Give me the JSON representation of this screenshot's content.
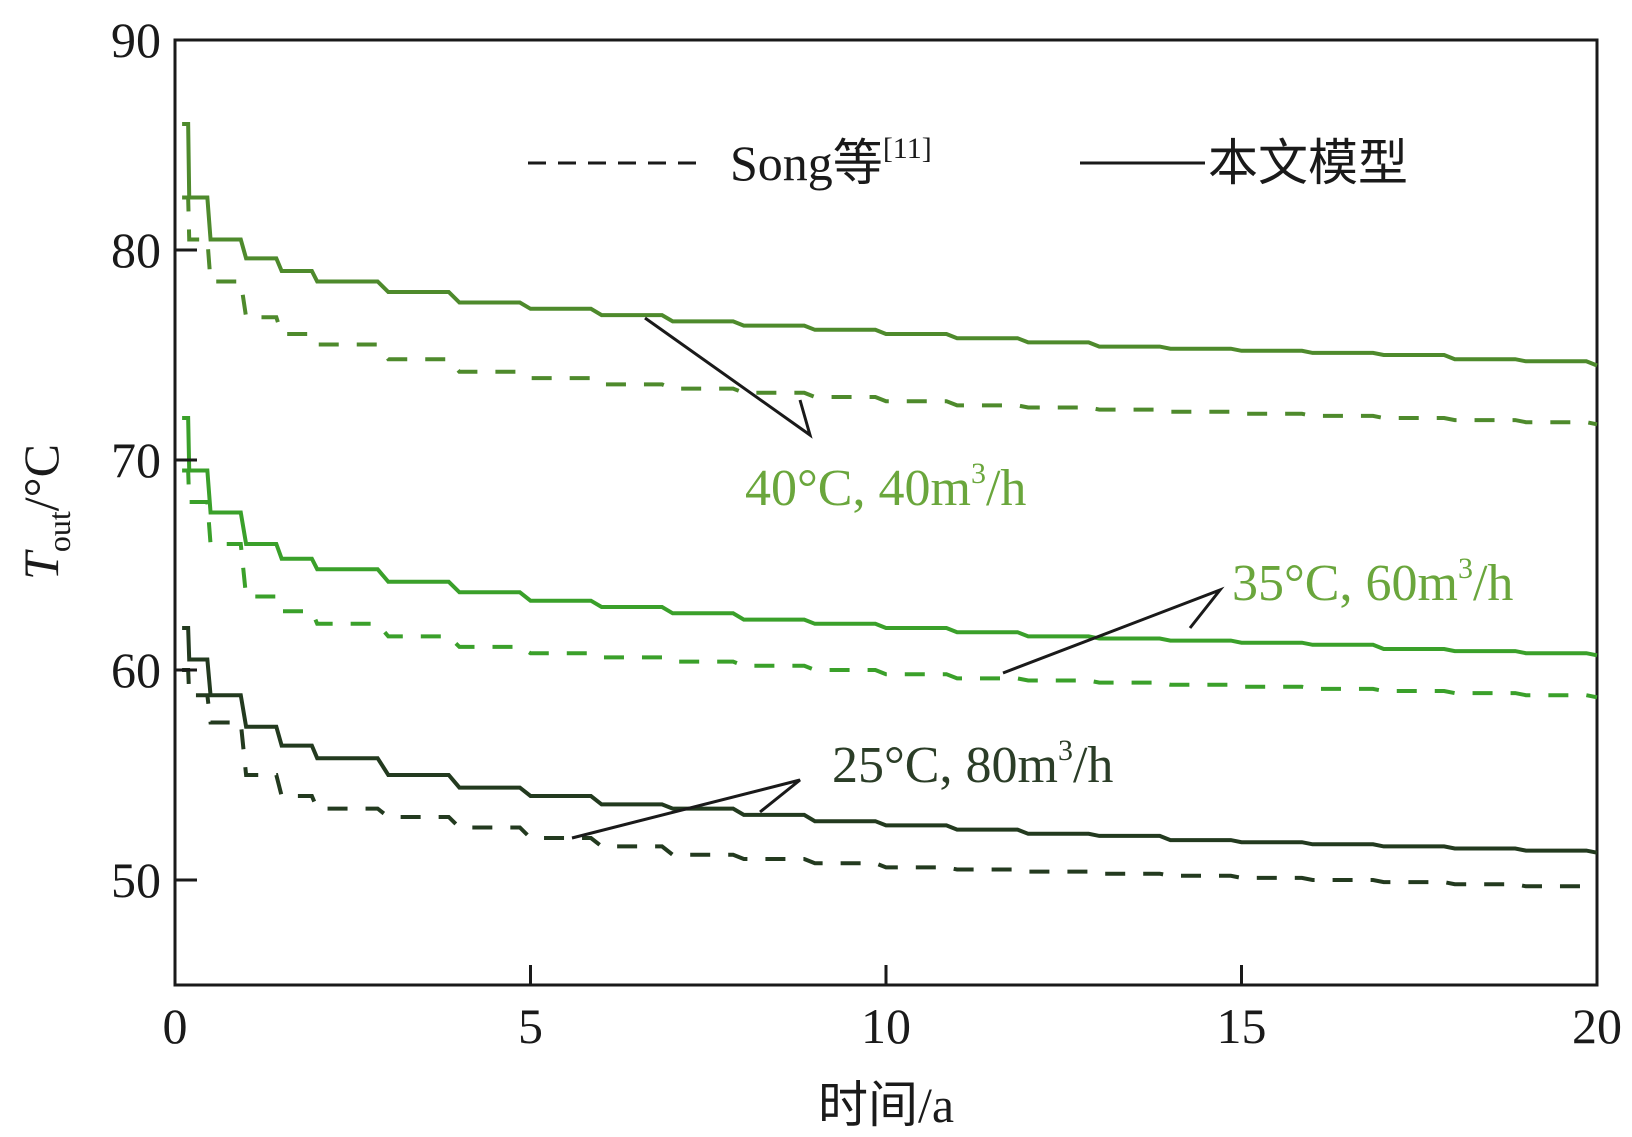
{
  "chart_data": {
    "type": "line",
    "title": "",
    "xlabel": "时间/a",
    "ylabel": {
      "main": "T",
      "sub": "out",
      "rest": "/°C"
    },
    "xlim": [
      0,
      20
    ],
    "ylim": [
      45,
      90
    ],
    "xticks": [
      0,
      5,
      10,
      15,
      20
    ],
    "yticks": [
      50,
      60,
      70,
      80,
      90
    ],
    "grid": false,
    "legend_position": "top",
    "legend": [
      {
        "style": "dashed",
        "label": "Song等",
        "sup": "[11]"
      },
      {
        "style": "solid",
        "label": "本文模型",
        "sup": ""
      }
    ],
    "x": [
      0.1,
      0.2,
      0.5,
      1,
      1.5,
      2,
      3,
      4,
      5,
      6,
      7,
      8,
      9,
      10,
      11,
      12,
      13,
      14,
      15,
      16,
      17,
      18,
      19,
      20
    ],
    "series": [
      {
        "group": "40°C, 40m³/h",
        "style": "solid",
        "color": "#4e8a2c",
        "values": [
          86,
          82.5,
          80.5,
          79.6,
          79.0,
          78.5,
          78.0,
          77.5,
          77.2,
          76.9,
          76.6,
          76.4,
          76.2,
          76.0,
          75.8,
          75.6,
          75.4,
          75.3,
          75.2,
          75.1,
          75.0,
          74.8,
          74.7,
          74.5
        ]
      },
      {
        "group": "40°C, 40m³/h",
        "style": "dashed",
        "color": "#4e8a2c",
        "values": [
          82.5,
          80.5,
          78.5,
          76.8,
          76.0,
          75.5,
          74.8,
          74.2,
          73.9,
          73.6,
          73.4,
          73.2,
          73.0,
          72.8,
          72.6,
          72.5,
          72.4,
          72.3,
          72.2,
          72.1,
          72.0,
          71.9,
          71.8,
          71.7
        ]
      },
      {
        "group": "35°C, 60m³/h",
        "style": "solid",
        "color": "#3aa02a",
        "values": [
          72,
          69.5,
          67.5,
          66.0,
          65.3,
          64.8,
          64.2,
          63.7,
          63.3,
          63.0,
          62.7,
          62.4,
          62.2,
          62.0,
          61.8,
          61.6,
          61.5,
          61.4,
          61.3,
          61.2,
          61.0,
          60.9,
          60.8,
          60.7
        ]
      },
      {
        "group": "35°C, 60m³/h",
        "style": "dashed",
        "color": "#3aa02a",
        "values": [
          69.5,
          68.0,
          66.0,
          63.5,
          62.8,
          62.2,
          61.6,
          61.1,
          60.8,
          60.6,
          60.4,
          60.2,
          60.0,
          59.8,
          59.6,
          59.5,
          59.4,
          59.3,
          59.2,
          59.1,
          59.0,
          58.9,
          58.8,
          58.7
        ]
      },
      {
        "group": "25°C, 80m³/h",
        "style": "solid",
        "color": "#233a1f",
        "values": [
          62,
          60.5,
          58.8,
          57.3,
          56.4,
          55.8,
          55.0,
          54.4,
          54.0,
          53.6,
          53.4,
          53.1,
          52.8,
          52.6,
          52.4,
          52.2,
          52.1,
          51.9,
          51.8,
          51.7,
          51.6,
          51.5,
          51.4,
          51.3
        ]
      },
      {
        "group": "25°C, 80m³/h",
        "style": "dashed",
        "color": "#233a1f",
        "values": [
          60.0,
          58.8,
          57.5,
          55.0,
          54.0,
          53.4,
          53.0,
          52.5,
          52.0,
          51.6,
          51.2,
          51.0,
          50.8,
          50.6,
          50.5,
          50.4,
          50.3,
          50.2,
          50.1,
          50.0,
          49.9,
          49.8,
          49.7,
          49.6
        ]
      }
    ],
    "annotations": [
      {
        "text": "40°C, 40m",
        "sup": "3",
        "tail": "/h",
        "color": "#6aa63c"
      },
      {
        "text": "35°C, 60m",
        "sup": "3",
        "tail": "/h",
        "color": "#6aa63c"
      },
      {
        "text": "25°C, 80m",
        "sup": "3",
        "tail": "/h",
        "color": "#2b3d27"
      }
    ]
  }
}
